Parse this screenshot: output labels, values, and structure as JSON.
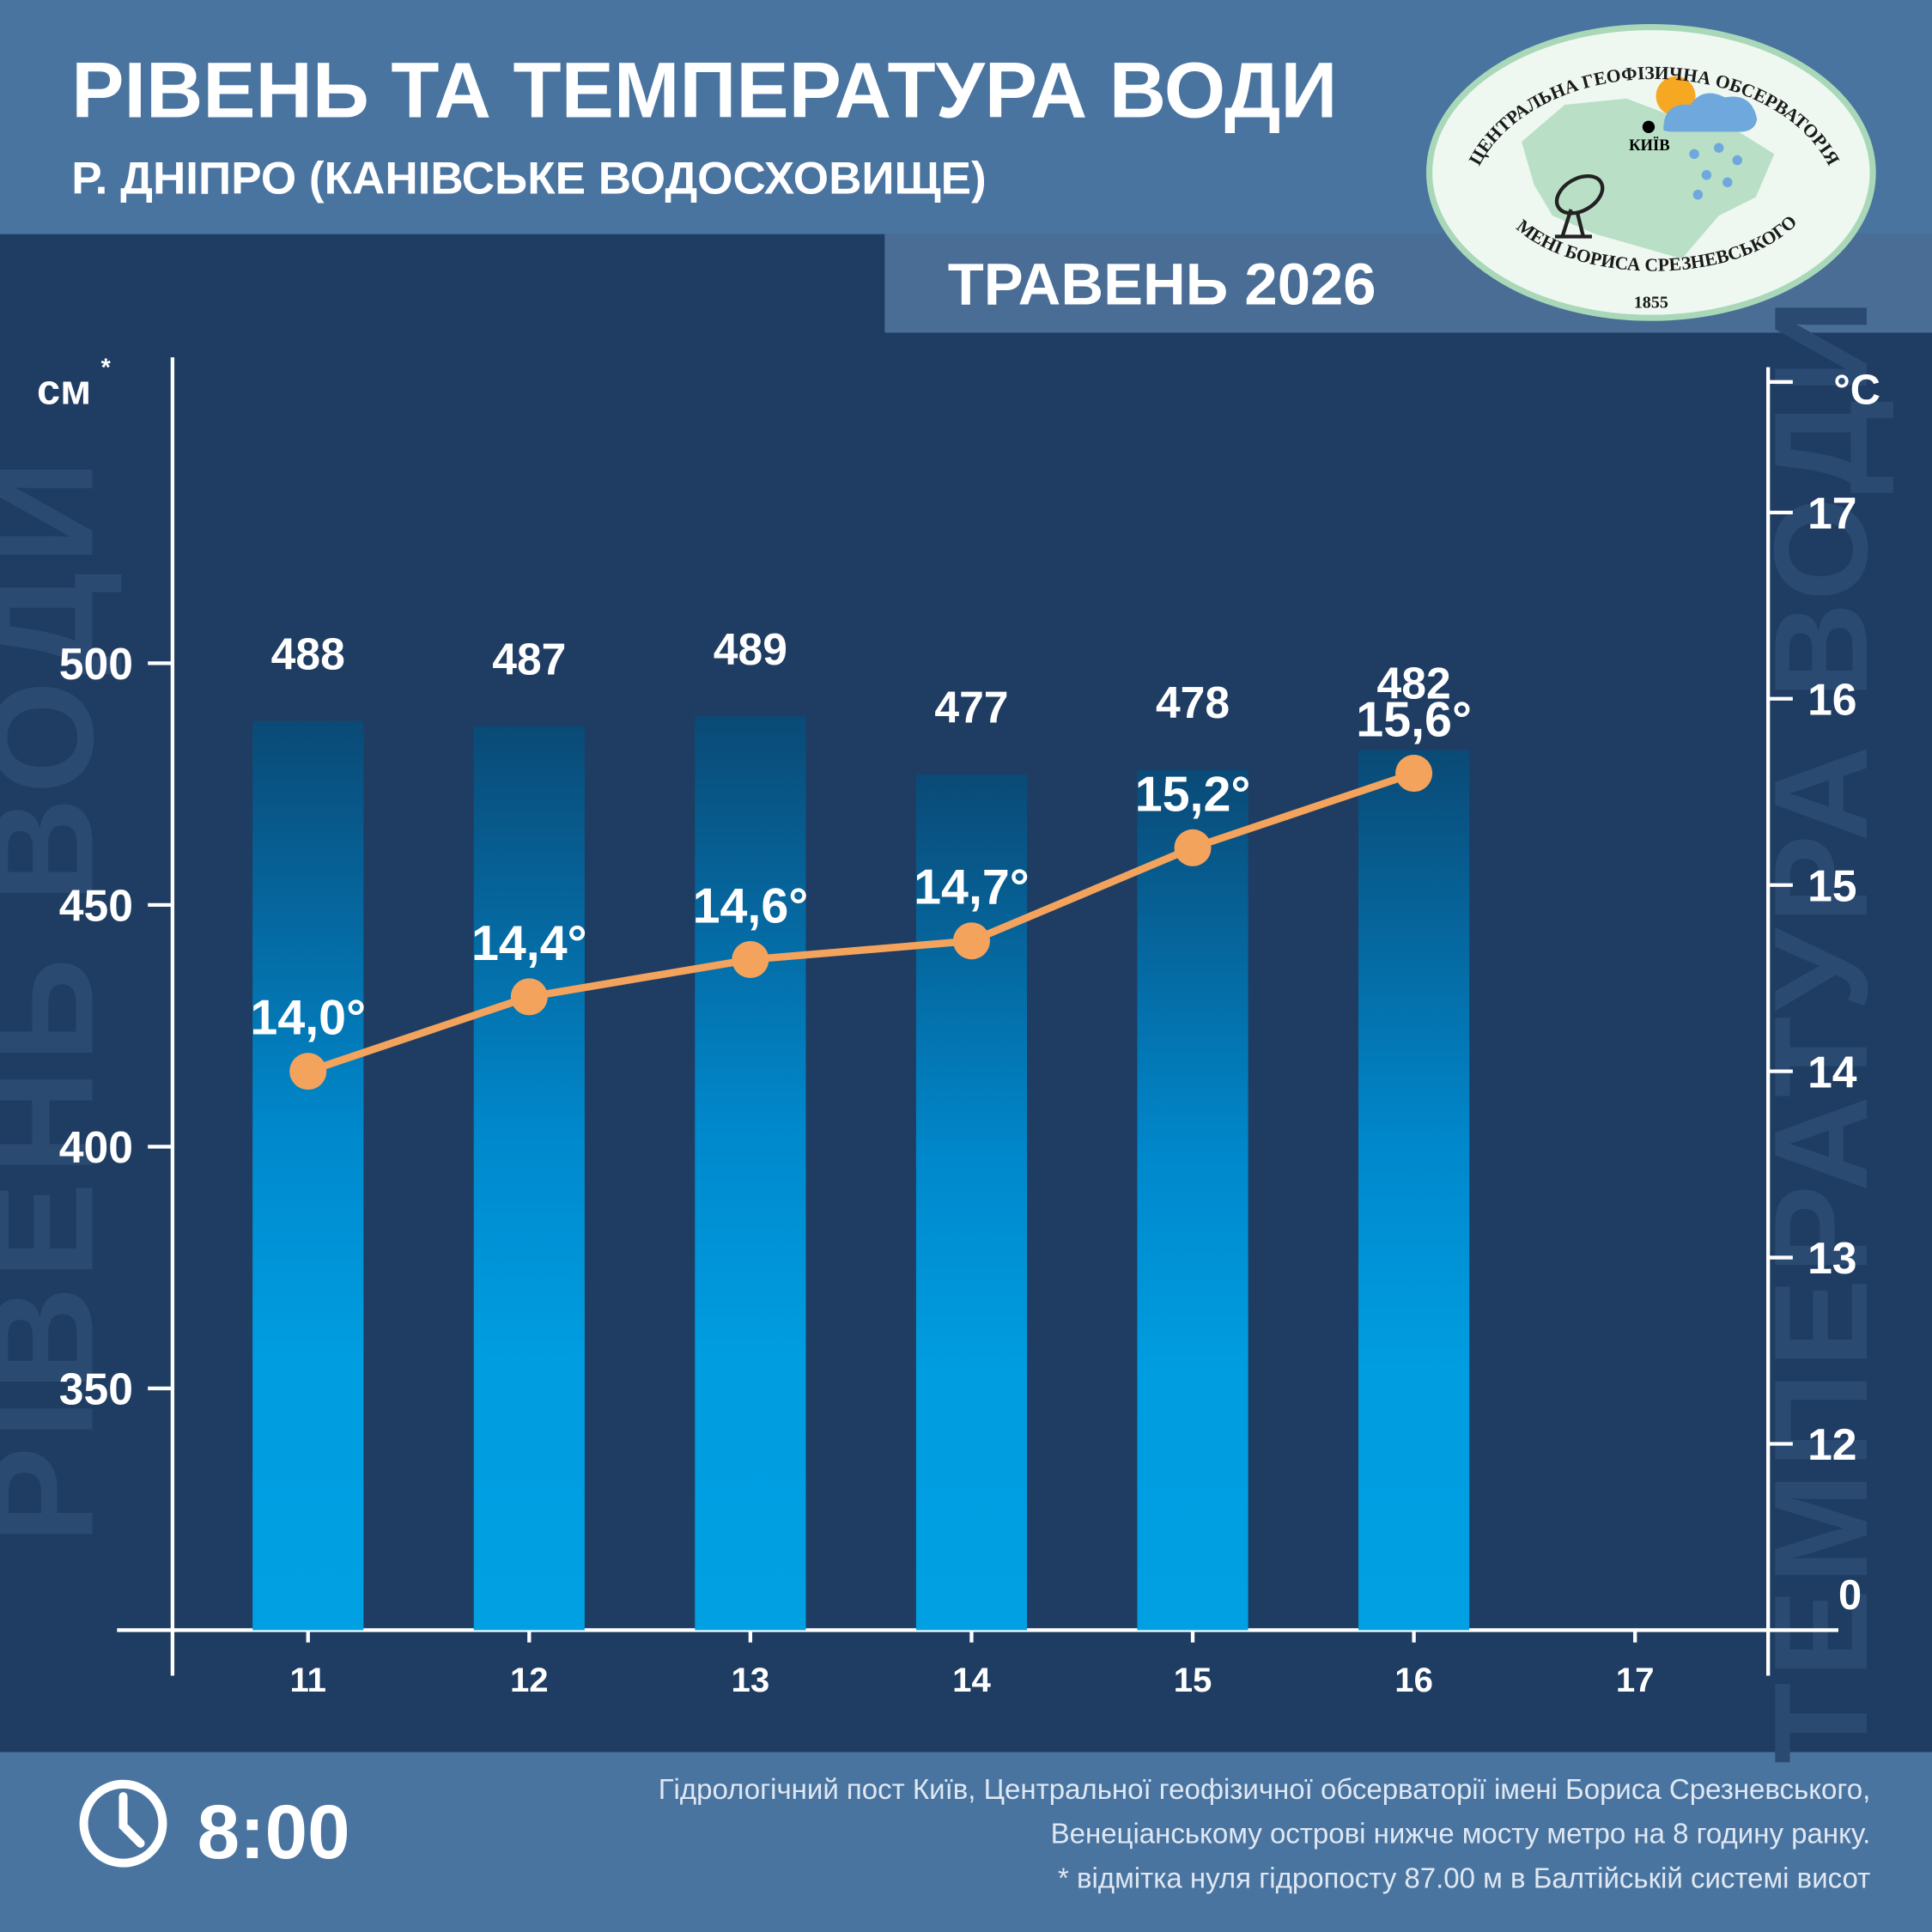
{
  "chart_data": {
    "type": "bar",
    "title": "РІВЕНЬ ТА ТЕМПЕРАТУРА ВОДИ",
    "subtitle": "Р. ДНІПРО (КАНІВСЬКЕ ВОДОСХОВИЩЕ)",
    "period": "ТРАВЕНЬ 2026",
    "y_label": "см",
    "y_label_note": "*",
    "y2_label": "°C",
    "y2_origin_label": "0",
    "categories": [
      "11",
      "12",
      "13",
      "14",
      "15",
      "16",
      "17"
    ],
    "series": [
      {
        "name": "РІВЕНЬ ВОДИ",
        "type": "bar",
        "color": "#009fe3",
        "values": [
          488,
          487,
          489,
          477,
          478,
          482,
          null
        ]
      },
      {
        "name": "ТЕМПЕРАТУРА ВОДИ",
        "type": "line",
        "axis": "y2",
        "color": "#f4a35c",
        "values": [
          14.0,
          14.4,
          14.6,
          14.7,
          15.2,
          15.6,
          null
        ],
        "value_labels": [
          "14,0°",
          "14,4°",
          "14,6°",
          "14,7°",
          "15,2°",
          "15,6°",
          null
        ]
      }
    ],
    "ylim": [
      300,
      562
    ],
    "yticks": [
      350,
      400,
      450,
      500
    ],
    "y2lim": [
      11,
      17.8
    ],
    "y2ticks": [
      12,
      13,
      14,
      15,
      16,
      17
    ]
  },
  "logo": {
    "top": "ЦЕНТРАЛЬНА ГЕОФІЗИЧНА ОБСЕРВАТОРІЯ",
    "bottom": "ІМЕНІ БОРИСА СРЕЗНЕВСЬКОГО",
    "year": "1855",
    "city": "КИЇВ"
  },
  "footer": {
    "time": "8:00",
    "notes": [
      "Гідрологічний пост Київ, Центральної геофізичної обсерваторії імені Бориса Срезневського,",
      "Венеціанському острові нижче мосту метро  на 8 годину ранку.",
      "* відмітка нуля гідропосту 87.00 м в Балтійській системі висот"
    ]
  }
}
